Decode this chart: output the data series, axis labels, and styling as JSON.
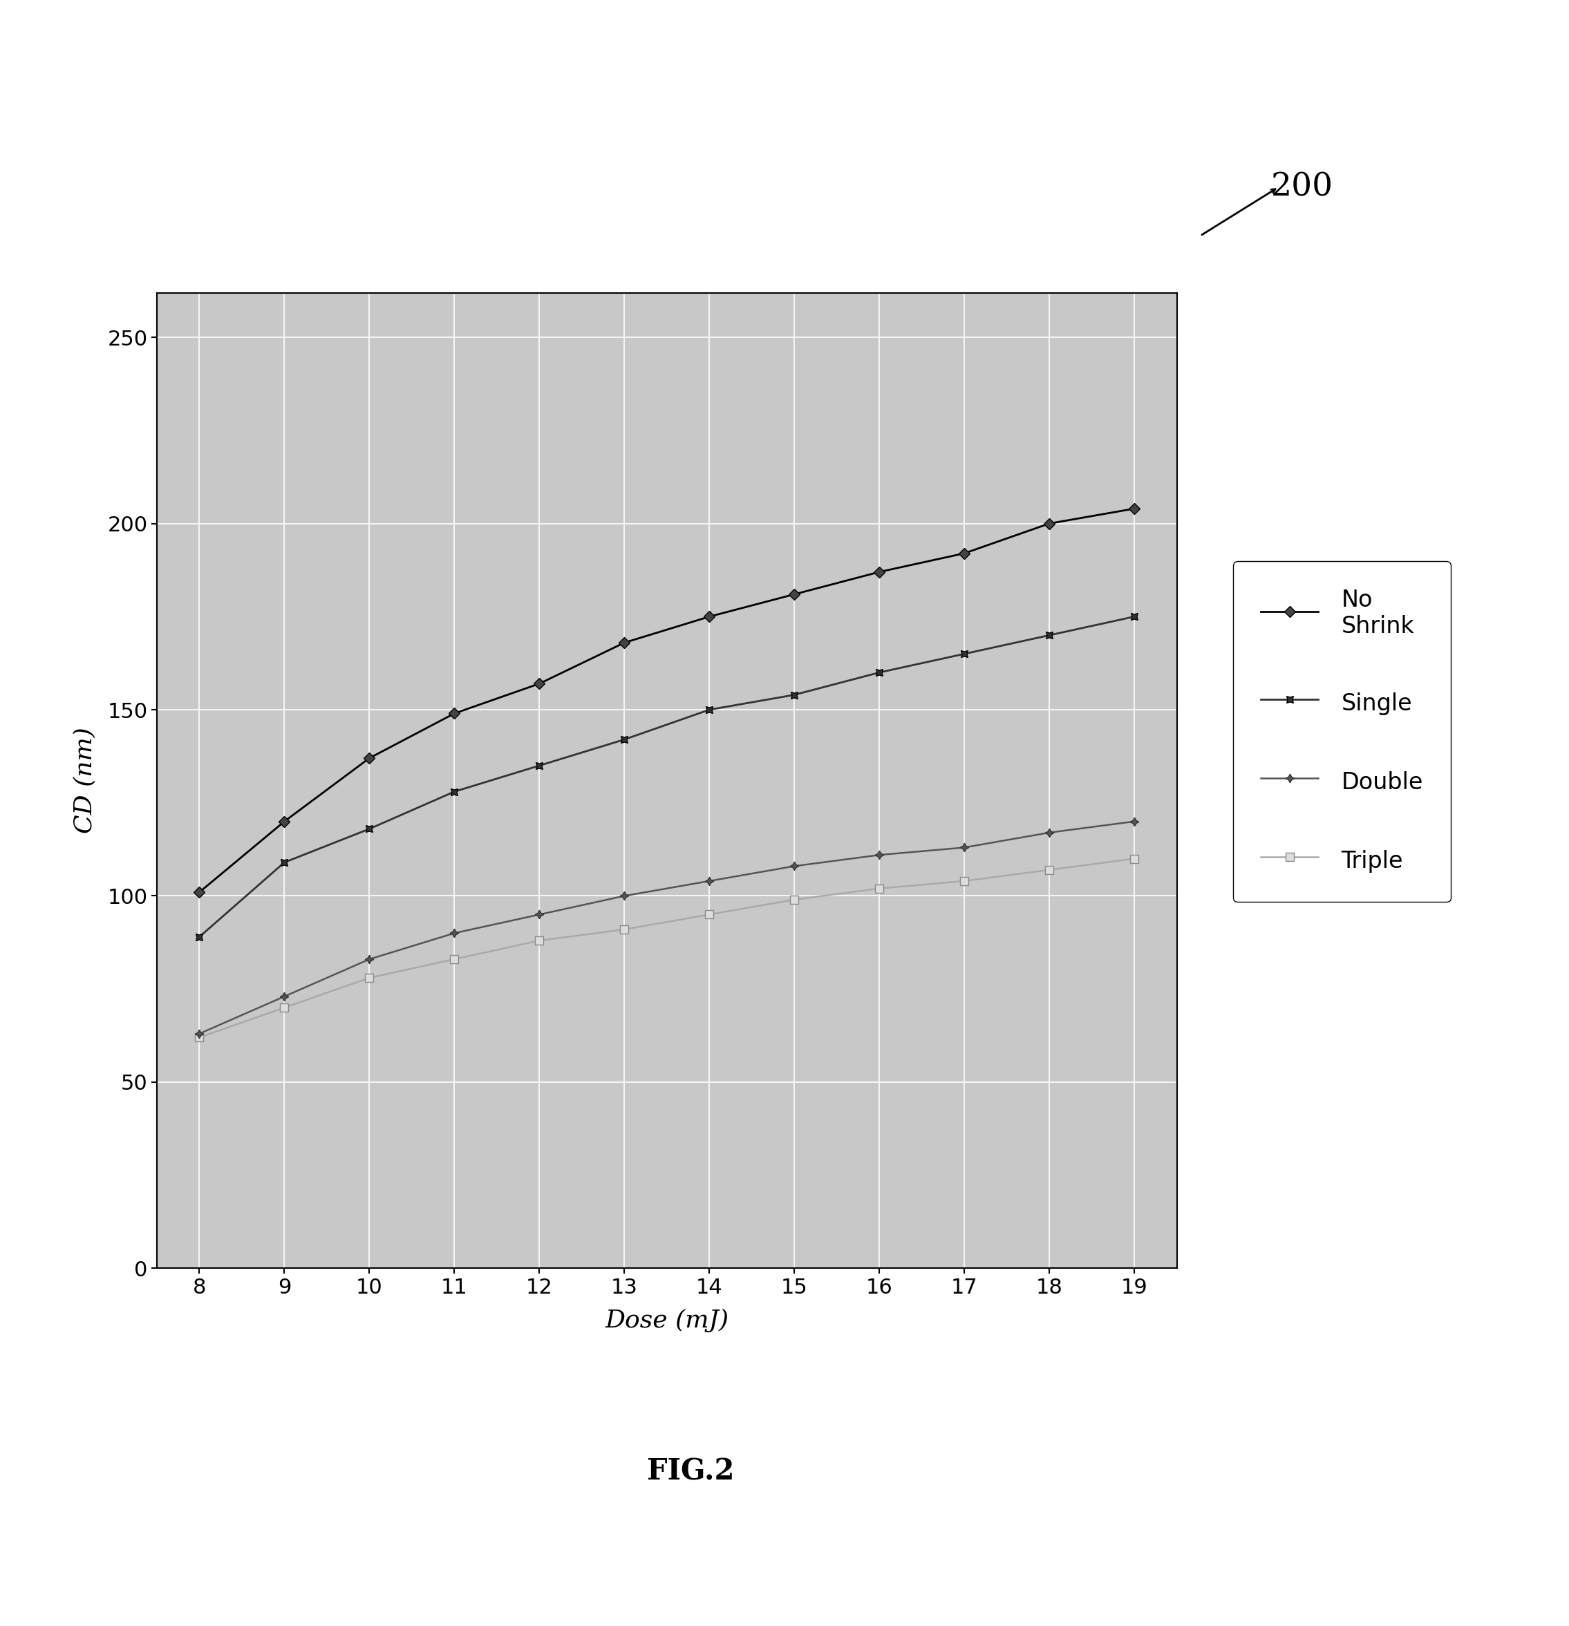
{
  "x": [
    8,
    9,
    10,
    11,
    12,
    13,
    14,
    15,
    16,
    17,
    18,
    19
  ],
  "no_shrink": [
    101,
    120,
    137,
    149,
    157,
    168,
    175,
    181,
    187,
    192,
    200,
    204
  ],
  "single": [
    89,
    109,
    118,
    128,
    135,
    142,
    150,
    154,
    160,
    165,
    170,
    175
  ],
  "double": [
    63,
    73,
    83,
    90,
    95,
    100,
    104,
    108,
    111,
    113,
    117,
    120
  ],
  "triple": [
    62,
    70,
    78,
    83,
    88,
    91,
    95,
    99,
    102,
    104,
    107,
    110
  ],
  "xlabel": "Dose (mJ)",
  "ylabel": "CD (nm)",
  "xlim": [
    7.5,
    19.5
  ],
  "ylim": [
    0,
    262
  ],
  "yticks": [
    0,
    50,
    100,
    150,
    200,
    250
  ],
  "xticks": [
    8,
    9,
    10,
    11,
    12,
    13,
    14,
    15,
    16,
    17,
    18,
    19
  ],
  "figure_label": "200",
  "fig_caption": "FIG.2"
}
